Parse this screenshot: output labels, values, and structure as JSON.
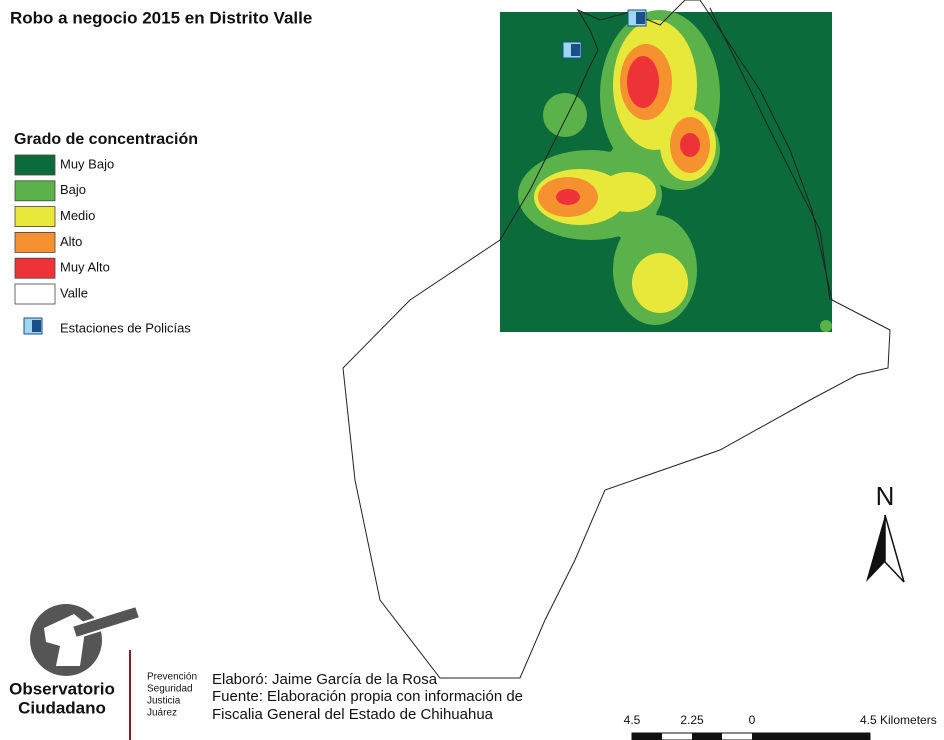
{
  "title": "Robo a negocio 2015 en Distrito Valle",
  "legend": {
    "title": "Grado de concentración",
    "items": [
      {
        "label": "Muy Bajo",
        "color": "#0b6b3a"
      },
      {
        "label": "Bajo",
        "color": "#5cb24a"
      },
      {
        "label": "Medio",
        "color": "#e8e83a"
      },
      {
        "label": "Alto",
        "color": "#f5922f"
      },
      {
        "label": "Muy Alto",
        "color": "#ee3338"
      },
      {
        "label": "Valle",
        "color": "#ffffff"
      }
    ],
    "stations": "Estaciones de Policías"
  },
  "north": "N",
  "scale": {
    "labels": [
      "4.5",
      "2.25",
      "0",
      "4.5 Kilometers"
    ]
  },
  "logo": {
    "name": [
      "Observatorio",
      "Ciudadano"
    ],
    "tagline": [
      "Prevención",
      "Seguridad",
      "Justicia",
      "Juárez"
    ]
  },
  "credits": [
    "Elaboró: Jaime García de la Rosa",
    "Fuente: Elaboración propia con información de",
    "Fiscalia General del Estado de Chihuahua"
  ]
}
